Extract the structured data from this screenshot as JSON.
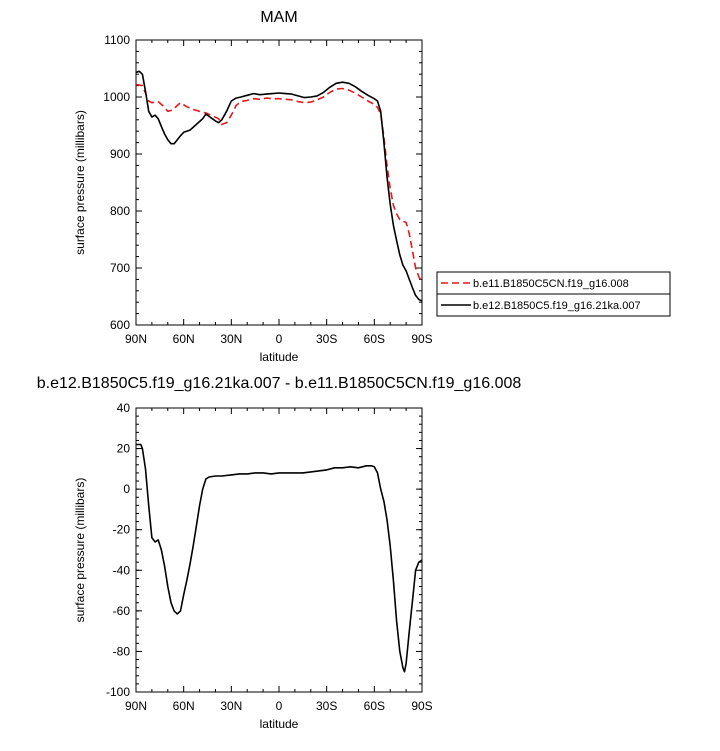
{
  "chart_data": [
    {
      "type": "line",
      "title": "MAM",
      "xlabel": "latitude",
      "ylabel": "surface pressure (millibars)",
      "xlim": [
        90,
        -90
      ],
      "ylim": [
        600,
        1100
      ],
      "x_ticks": [
        {
          "value": 90,
          "label": "90N"
        },
        {
          "value": 60,
          "label": "60N"
        },
        {
          "value": 30,
          "label": "30N"
        },
        {
          "value": 0,
          "label": "0"
        },
        {
          "value": -30,
          "label": "30S"
        },
        {
          "value": -60,
          "label": "60S"
        },
        {
          "value": -90,
          "label": "90S"
        }
      ],
      "y_ticks": [
        {
          "value": 600,
          "label": "600"
        },
        {
          "value": 700,
          "label": "700"
        },
        {
          "value": 800,
          "label": "800"
        },
        {
          "value": 900,
          "label": "900"
        },
        {
          "value": 1000,
          "label": "1000"
        },
        {
          "value": 1100,
          "label": "1100"
        }
      ],
      "legend_position": "outside-right",
      "series": [
        {
          "name": "b.e11.B1850C5CN.f19_g16.008",
          "color": "#e41a1c",
          "dash": "dashed",
          "points": [
            [
              90,
              1022
            ],
            [
              86,
              1020
            ],
            [
              82,
              993
            ],
            [
              80,
              990
            ],
            [
              76,
              992
            ],
            [
              72,
              982
            ],
            [
              70,
              975
            ],
            [
              67,
              977
            ],
            [
              64,
              985
            ],
            [
              62,
              990
            ],
            [
              58,
              983
            ],
            [
              54,
              978
            ],
            [
              50,
              975
            ],
            [
              46,
              972
            ],
            [
              42,
              967
            ],
            [
              38,
              962
            ],
            [
              36,
              952
            ],
            [
              33,
              955
            ],
            [
              30,
              968
            ],
            [
              27,
              985
            ],
            [
              24,
              992
            ],
            [
              20,
              994
            ],
            [
              16,
              997
            ],
            [
              12,
              996
            ],
            [
              8,
              998
            ],
            [
              4,
              997
            ],
            [
              0,
              997
            ],
            [
              -4,
              996
            ],
            [
              -8,
              995
            ],
            [
              -12,
              992
            ],
            [
              -16,
              990
            ],
            [
              -20,
              991
            ],
            [
              -24,
              995
            ],
            [
              -28,
              1000
            ],
            [
              -32,
              1008
            ],
            [
              -36,
              1014
            ],
            [
              -40,
              1015
            ],
            [
              -44,
              1012
            ],
            [
              -48,
              1007
            ],
            [
              -52,
              1000
            ],
            [
              -56,
              993
            ],
            [
              -60,
              987
            ],
            [
              -62,
              982
            ],
            [
              -64,
              970
            ],
            [
              -66,
              930
            ],
            [
              -68,
              880
            ],
            [
              -70,
              840
            ],
            [
              -72,
              810
            ],
            [
              -74,
              795
            ],
            [
              -76,
              785
            ],
            [
              -78,
              782
            ],
            [
              -80,
              780
            ],
            [
              -82,
              760
            ],
            [
              -84,
              730
            ],
            [
              -86,
              700
            ],
            [
              -88,
              685
            ],
            [
              -90,
              675
            ]
          ]
        },
        {
          "name": "b.e12.B1850C5.f19_g16.21ka.007",
          "color": "#000000",
          "dash": "solid",
          "points": [
            [
              90,
              1043
            ],
            [
              88,
              1045
            ],
            [
              86,
              1040
            ],
            [
              84,
              1010
            ],
            [
              82,
              975
            ],
            [
              80,
              965
            ],
            [
              78,
              968
            ],
            [
              76,
              962
            ],
            [
              74,
              948
            ],
            [
              72,
              935
            ],
            [
              70,
              925
            ],
            [
              68,
              918
            ],
            [
              66,
              918
            ],
            [
              64,
              925
            ],
            [
              62,
              932
            ],
            [
              60,
              938
            ],
            [
              56,
              942
            ],
            [
              52,
              952
            ],
            [
              48,
              962
            ],
            [
              46,
              970
            ],
            [
              44,
              966
            ],
            [
              42,
              962
            ],
            [
              40,
              958
            ],
            [
              38,
              955
            ],
            [
              36,
              960
            ],
            [
              33,
              975
            ],
            [
              30,
              993
            ],
            [
              27,
              998
            ],
            [
              24,
              1000
            ],
            [
              20,
              1003
            ],
            [
              16,
              1006
            ],
            [
              12,
              1004
            ],
            [
              8,
              1005
            ],
            [
              4,
              1006
            ],
            [
              0,
              1007
            ],
            [
              -4,
              1006
            ],
            [
              -8,
              1005
            ],
            [
              -12,
              1002
            ],
            [
              -16,
              999
            ],
            [
              -20,
              1000
            ],
            [
              -24,
              1002
            ],
            [
              -28,
              1008
            ],
            [
              -32,
              1017
            ],
            [
              -36,
              1024
            ],
            [
              -40,
              1026
            ],
            [
              -44,
              1024
            ],
            [
              -48,
              1018
            ],
            [
              -52,
              1010
            ],
            [
              -56,
              1003
            ],
            [
              -60,
              997
            ],
            [
              -62,
              993
            ],
            [
              -64,
              975
            ],
            [
              -66,
              920
            ],
            [
              -68,
              860
            ],
            [
              -70,
              812
            ],
            [
              -72,
              775
            ],
            [
              -74,
              748
            ],
            [
              -76,
              723
            ],
            [
              -78,
              705
            ],
            [
              -80,
              695
            ],
            [
              -82,
              680
            ],
            [
              -84,
              665
            ],
            [
              -86,
              652
            ],
            [
              -88,
              645
            ],
            [
              -90,
              642
            ]
          ]
        }
      ]
    },
    {
      "type": "line",
      "title": "b.e12.B1850C5.f19_g16.21ka.007 - b.e11.B1850C5CN.f19_g16.008",
      "xlabel": "latitude",
      "ylabel": "surface pressure (millibars)",
      "xlim": [
        90,
        -90
      ],
      "ylim": [
        -100,
        40
      ],
      "x_ticks": [
        {
          "value": 90,
          "label": "90N"
        },
        {
          "value": 60,
          "label": "60N"
        },
        {
          "value": 30,
          "label": "30N"
        },
        {
          "value": 0,
          "label": "0"
        },
        {
          "value": -30,
          "label": "30S"
        },
        {
          "value": -60,
          "label": "60S"
        },
        {
          "value": -90,
          "label": "90S"
        }
      ],
      "y_ticks": [
        {
          "value": -100,
          "label": "-100"
        },
        {
          "value": -80,
          "label": "-80"
        },
        {
          "value": -60,
          "label": "-60"
        },
        {
          "value": -40,
          "label": "-40"
        },
        {
          "value": -20,
          "label": "-20"
        },
        {
          "value": 0,
          "label": "0"
        },
        {
          "value": 20,
          "label": "20"
        },
        {
          "value": 40,
          "label": "40"
        }
      ],
      "series": [
        {
          "color": "#000000",
          "dash": "solid",
          "points": [
            [
              90,
              22
            ],
            [
              87,
              22
            ],
            [
              86,
              20
            ],
            [
              84,
              10
            ],
            [
              82,
              -8
            ],
            [
              80,
              -24
            ],
            [
              78,
              -26
            ],
            [
              76,
              -25
            ],
            [
              74,
              -30
            ],
            [
              72,
              -38
            ],
            [
              70,
              -48
            ],
            [
              68,
              -56
            ],
            [
              66,
              -60
            ],
            [
              64,
              -61.5
            ],
            [
              62,
              -60
            ],
            [
              60,
              -52
            ],
            [
              58,
              -45
            ],
            [
              56,
              -37
            ],
            [
              54,
              -28
            ],
            [
              52,
              -18
            ],
            [
              50,
              -8
            ],
            [
              48,
              0
            ],
            [
              46,
              5
            ],
            [
              44,
              6
            ],
            [
              40,
              6.5
            ],
            [
              36,
              6.5
            ],
            [
              30,
              7
            ],
            [
              25,
              7.5
            ],
            [
              20,
              7.5
            ],
            [
              15,
              8
            ],
            [
              10,
              8
            ],
            [
              5,
              7.5
            ],
            [
              0,
              8
            ],
            [
              -5,
              8
            ],
            [
              -10,
              8
            ],
            [
              -15,
              8
            ],
            [
              -20,
              8.5
            ],
            [
              -25,
              9
            ],
            [
              -30,
              9.5
            ],
            [
              -35,
              10.5
            ],
            [
              -40,
              10.5
            ],
            [
              -45,
              11
            ],
            [
              -50,
              10.5
            ],
            [
              -55,
              11.5
            ],
            [
              -58,
              11.5
            ],
            [
              -60,
              11
            ],
            [
              -62,
              8
            ],
            [
              -64,
              0
            ],
            [
              -66,
              -6
            ],
            [
              -68,
              -15
            ],
            [
              -70,
              -28
            ],
            [
              -72,
              -45
            ],
            [
              -74,
              -65
            ],
            [
              -76,
              -80
            ],
            [
              -78,
              -88
            ],
            [
              -79,
              -90
            ],
            [
              -80,
              -86
            ],
            [
              -82,
              -70
            ],
            [
              -84,
              -55
            ],
            [
              -86,
              -40
            ],
            [
              -88,
              -36
            ],
            [
              -90,
              -35
            ]
          ]
        }
      ]
    }
  ]
}
